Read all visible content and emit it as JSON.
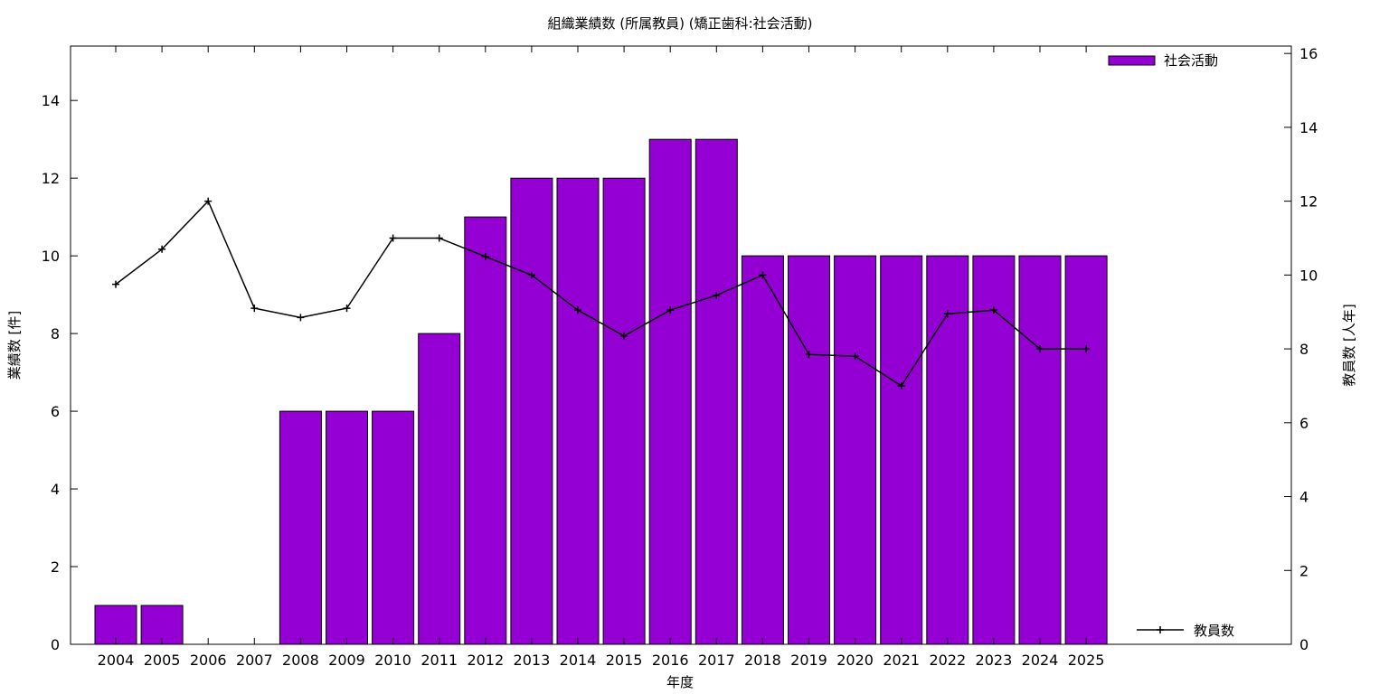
{
  "chart_data": {
    "type": "bar",
    "title": "組織業績数 (所属教員) (矯正歯科:社会活動)",
    "xlabel": "年度",
    "ylabel": "業績数 [件]",
    "y2label": "教員数 [人年]",
    "categories": [
      "2004",
      "2005",
      "2006",
      "2007",
      "2008",
      "2009",
      "2010",
      "2011",
      "2012",
      "2013",
      "2014",
      "2015",
      "2016",
      "2017",
      "2018",
      "2019",
      "2020",
      "2021",
      "2022",
      "2023",
      "2024",
      "2025"
    ],
    "series": [
      {
        "name": "社会活動",
        "type": "bar",
        "axis": "left",
        "color": "#9400d3",
        "values": [
          1,
          1,
          0,
          0,
          6,
          6,
          6,
          8,
          11,
          12,
          12,
          12,
          13,
          13,
          10,
          10,
          10,
          10,
          10,
          10,
          10,
          10
        ]
      },
      {
        "name": "教員数",
        "type": "line",
        "axis": "right",
        "color": "#000000",
        "values": [
          9.75,
          10.7,
          12,
          9.1,
          8.85,
          9.1,
          11,
          11,
          10.5,
          10,
          9.05,
          8.35,
          9.05,
          9.45,
          10,
          7.85,
          7.8,
          7,
          8.95,
          9.05,
          8,
          8
        ]
      }
    ],
    "ylim": [
      0,
      15.4
    ],
    "y2lim": [
      0,
      16.2
    ],
    "yticks": [
      0,
      2,
      4,
      6,
      8,
      10,
      12,
      14
    ],
    "y2ticks": [
      0,
      2,
      4,
      6,
      8,
      10,
      12,
      14,
      16
    ],
    "legend": [
      "top-right",
      "bottom-right"
    ],
    "grid": false
  }
}
